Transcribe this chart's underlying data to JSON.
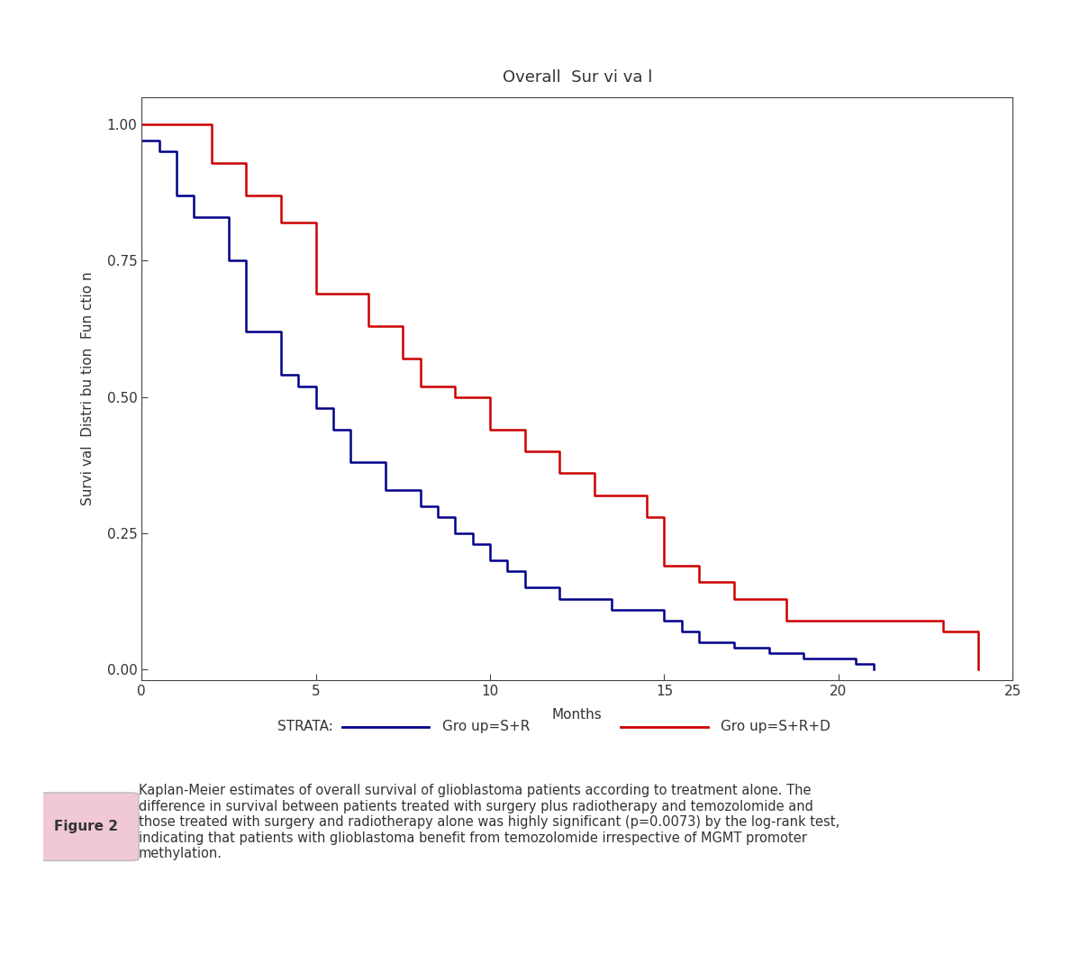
{
  "title": "Overall  Sur vi va l",
  "xlabel": "Months",
  "ylabel": "Survi val  Distri bu tion  Fun ctio n",
  "xlim": [
    0,
    25
  ],
  "ylim": [
    -0.02,
    1.05
  ],
  "xticks": [
    0,
    5,
    10,
    15,
    20,
    25
  ],
  "yticks": [
    0.0,
    0.25,
    0.5,
    0.75,
    1.0
  ],
  "ytick_labels": [
    "0.00",
    "0.25",
    "0.50",
    "0.75",
    "1.00"
  ],
  "blue_color": "#00008B",
  "red_color": "#CC0000",
  "legend_label_blue": "Gro up=S+R",
  "legend_label_red": "Gro up=S+R+D",
  "strata_label": "STRATA:",
  "blue_x": [
    0,
    0.5,
    1.0,
    1.5,
    2.5,
    3.0,
    4.0,
    4.5,
    5.0,
    5.5,
    6.0,
    7.0,
    8.0,
    8.5,
    9.0,
    9.5,
    10.0,
    10.5,
    11.0,
    12.0,
    13.5,
    15.0,
    15.5,
    16.0,
    17.0,
    18.0,
    19.0,
    20.5,
    21.0
  ],
  "blue_y": [
    0.97,
    0.95,
    0.87,
    0.83,
    0.75,
    0.62,
    0.54,
    0.52,
    0.48,
    0.44,
    0.38,
    0.33,
    0.3,
    0.28,
    0.25,
    0.23,
    0.2,
    0.18,
    0.15,
    0.13,
    0.11,
    0.09,
    0.07,
    0.05,
    0.04,
    0.03,
    0.02,
    0.01,
    0.0
  ],
  "red_x": [
    0,
    2.0,
    3.0,
    4.0,
    5.0,
    6.5,
    7.5,
    8.0,
    9.0,
    10.0,
    11.0,
    12.0,
    13.0,
    14.5,
    15.0,
    16.0,
    17.0,
    18.5,
    23.0,
    24.0
  ],
  "red_y": [
    1.0,
    0.93,
    0.87,
    0.82,
    0.69,
    0.63,
    0.57,
    0.52,
    0.5,
    0.44,
    0.4,
    0.36,
    0.32,
    0.28,
    0.19,
    0.16,
    0.13,
    0.09,
    0.07,
    0.0
  ],
  "background_color": "#ffffff",
  "figure_bg": "#ffffff",
  "border_color": "#c060a0",
  "caption_title": "Figure 2",
  "caption_text": "Kaplan-Meier estimates of overall survival of glioblastoma patients according to treatment alone. The\ndifference in survival between patients treated with surgery plus radiotherapy and temozolomide and\nthose treated with surgery and radiotherapy alone was highly significant (p=0.0073) by the log-rank test,\nindicating that patients with glioblastoma benefit from temozolomide irrespective of MGMT promoter\nmethylation.",
  "title_fontsize": 13,
  "axis_label_fontsize": 11,
  "tick_fontsize": 11,
  "legend_fontsize": 11,
  "caption_fontsize": 10.5
}
